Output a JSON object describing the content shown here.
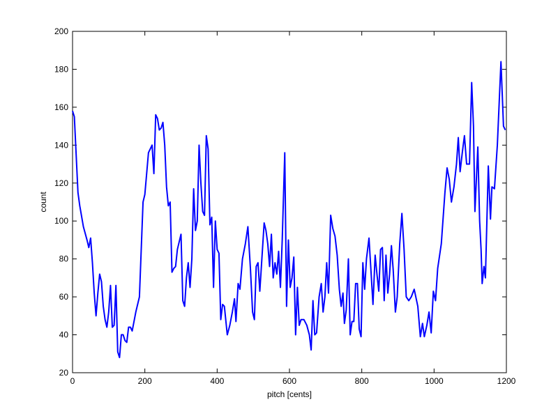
{
  "chart_data": {
    "type": "line",
    "x_label": "pitch [cents]",
    "y_label": "count",
    "xlim": [
      0,
      1200
    ],
    "ylim": [
      20,
      200
    ],
    "xticks": [
      0,
      200,
      400,
      600,
      800,
      1000,
      1200
    ],
    "yticks": [
      20,
      40,
      60,
      80,
      100,
      120,
      140,
      160,
      180,
      200
    ],
    "color": "#0000ff",
    "x": [
      0,
      5,
      10,
      15,
      20,
      30,
      40,
      45,
      50,
      55,
      60,
      65,
      70,
      75,
      80,
      85,
      90,
      95,
      100,
      105,
      110,
      115,
      120,
      125,
      130,
      135,
      140,
      145,
      150,
      155,
      160,
      165,
      175,
      185,
      195,
      200,
      205,
      210,
      220,
      225,
      230,
      235,
      240,
      245,
      250,
      255,
      260,
      265,
      270,
      275,
      280,
      285,
      290,
      300,
      305,
      310,
      315,
      320,
      325,
      330,
      335,
      340,
      345,
      350,
      355,
      360,
      365,
      370,
      375,
      380,
      385,
      390,
      395,
      400,
      405,
      410,
      415,
      420,
      428,
      435,
      442,
      448,
      452,
      458,
      463,
      470,
      478,
      485,
      492,
      498,
      503,
      508,
      513,
      518,
      530,
      535,
      540,
      545,
      550,
      555,
      560,
      565,
      570,
      575,
      580,
      587,
      592,
      597,
      602,
      607,
      612,
      617,
      622,
      627,
      632,
      640,
      648,
      655,
      660,
      665,
      670,
      675,
      682,
      688,
      693,
      698,
      703,
      708,
      714,
      720,
      726,
      732,
      738,
      743,
      748,
      752,
      757,
      763,
      768,
      773,
      778,
      783,
      788,
      793,
      798,
      803,
      808,
      813,
      820,
      826,
      831,
      837,
      842,
      847,
      852,
      857,
      862,
      867,
      872,
      877,
      882,
      887,
      893,
      898,
      905,
      911,
      917,
      923,
      930,
      937,
      945,
      955,
      962,
      968,
      973,
      980,
      986,
      992,
      998,
      1004,
      1010,
      1020,
      1030,
      1036,
      1042,
      1048,
      1055,
      1062,
      1067,
      1072,
      1078,
      1084,
      1090,
      1098,
      1104,
      1109,
      1113,
      1121,
      1126,
      1130,
      1133,
      1138,
      1142,
      1150,
      1156,
      1160,
      1167,
      1175,
      1180,
      1185,
      1192,
      1197
    ],
    "values": [
      158,
      155,
      135,
      115,
      108,
      97,
      90,
      86,
      91,
      78,
      62,
      50,
      62,
      72,
      68,
      55,
      48,
      44,
      52,
      66,
      44,
      45,
      66,
      31,
      28,
      40,
      40,
      37,
      36,
      44,
      44,
      42,
      52,
      60,
      110,
      114,
      125,
      136,
      140,
      125,
      156,
      154,
      148,
      149,
      152,
      140,
      118,
      108,
      110,
      73,
      75,
      76,
      85,
      93,
      58,
      55,
      70,
      78,
      65,
      80,
      117,
      95,
      100,
      140,
      120,
      105,
      103,
      145,
      138,
      98,
      102,
      65,
      100,
      85,
      83,
      48,
      56,
      55,
      40,
      45,
      52,
      59,
      47,
      67,
      64,
      80,
      88,
      97,
      75,
      52,
      48,
      76,
      78,
      63,
      99,
      95,
      88,
      76,
      93,
      70,
      78,
      72,
      84,
      65,
      90,
      136,
      55,
      90,
      65,
      70,
      81,
      40,
      65,
      45,
      48,
      48,
      45,
      40,
      32,
      58,
      40,
      41,
      60,
      67,
      52,
      60,
      78,
      62,
      103,
      96,
      92,
      82,
      64,
      55,
      62,
      46,
      53,
      80,
      40,
      47,
      47,
      67,
      67,
      43,
      39,
      78,
      64,
      80,
      91,
      72,
      56,
      82,
      72,
      63,
      85,
      86,
      58,
      82,
      62,
      72,
      87,
      74,
      52,
      60,
      88,
      104,
      85,
      60,
      58,
      60,
      64,
      55,
      39,
      46,
      39,
      45,
      52,
      41,
      63,
      58,
      75,
      88,
      115,
      128,
      122,
      110,
      118,
      130,
      144,
      126,
      136,
      145,
      130,
      130,
      173,
      150,
      105,
      139,
      100,
      85,
      67,
      76,
      70,
      129,
      101,
      118,
      117,
      140,
      162,
      184,
      150,
      148
    ]
  }
}
